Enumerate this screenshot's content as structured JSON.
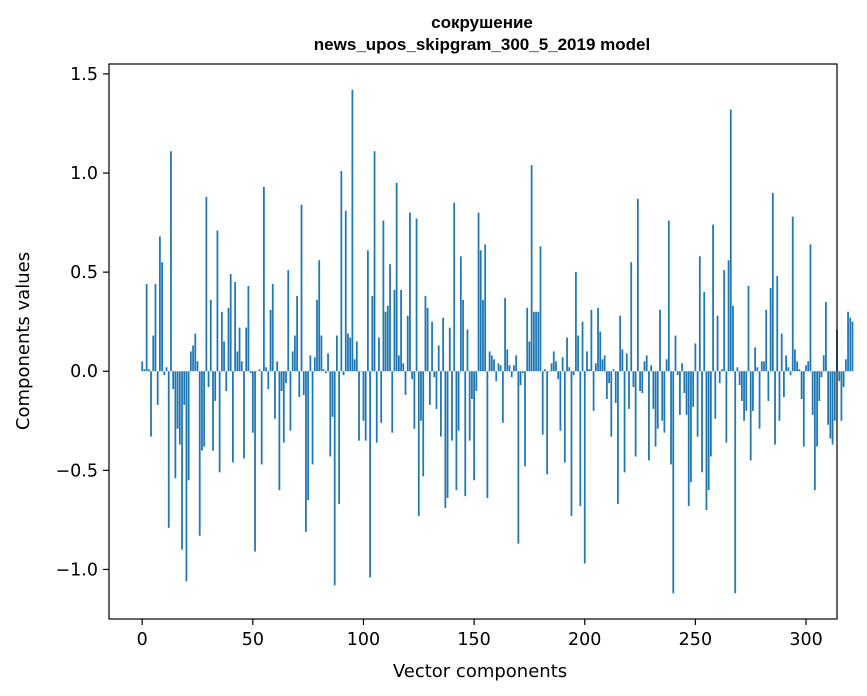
{
  "chart_data": {
    "type": "bar",
    "title": "сокрушение",
    "subtitle": "news_upos_skipgram_300_5_2019 model",
    "xlabel": "Vector components",
    "ylabel": "Components values",
    "xlim": [
      -15,
      314
    ],
    "ylim": [
      -1.25,
      1.55
    ],
    "xticks": [
      0,
      50,
      100,
      150,
      200,
      250,
      300
    ],
    "yticks": [
      -1.0,
      -0.5,
      0.0,
      0.5,
      1.0,
      1.5
    ],
    "xtick_labels": [
      "0",
      "50",
      "100",
      "150",
      "200",
      "250",
      "300"
    ],
    "ytick_labels": [
      "−1.0",
      "−0.5",
      "0.0",
      "0.5",
      "1.0",
      "1.5"
    ],
    "bar_color": "#1f77b4",
    "grid": false,
    "legend": "none",
    "values": [
      0.05,
      0.01,
      0.44,
      0.01,
      -0.33,
      0.18,
      0.44,
      -0.17,
      0.68,
      0.55,
      -0.02,
      0.02,
      -0.79,
      1.11,
      -0.09,
      -0.54,
      -0.29,
      -0.37,
      -0.9,
      -0.17,
      -1.06,
      -0.55,
      0.1,
      0.13,
      0.19,
      0.05,
      -0.83,
      -0.4,
      -0.38,
      0.88,
      -0.08,
      0.36,
      -0.4,
      -0.15,
      0.71,
      -0.51,
      0.3,
      0.15,
      -0.1,
      0.32,
      0.49,
      -0.46,
      0.45,
      0.1,
      0.22,
      0.05,
      -0.44,
      0.22,
      0.43,
      -0.01,
      -0.31,
      -0.91,
      0.0,
      0.01,
      -0.47,
      0.93,
      0.02,
      -0.09,
      0.31,
      0.44,
      -0.24,
      0.05,
      -0.6,
      -0.1,
      -0.36,
      -0.06,
      0.51,
      -0.3,
      0.1,
      0.18,
      0.38,
      -0.13,
      0.84,
      -0.12,
      -0.81,
      -0.65,
      0.08,
      -0.47,
      0.07,
      0.36,
      0.56,
      0.18,
      0.01,
      -0.01,
      0.09,
      -0.43,
      -0.23,
      -1.08,
      0.18,
      -0.67,
      1.01,
      -0.02,
      0.81,
      0.19,
      0.17,
      1.42,
      0.06,
      0.15,
      -0.35,
      0.0,
      -0.25,
      -0.35,
      0.61,
      -1.04,
      0.38,
      1.11,
      -0.36,
      0.17,
      -0.26,
      0.76,
      0.3,
      0.33,
      0.54,
      -0.31,
      0.41,
      0.95,
      0.08,
      0.41,
      0.04,
      -0.12,
      0.28,
      0.8,
      -0.04,
      -0.29,
      0.77,
      -0.73,
      -0.25,
      -0.53,
      0.38,
      0.32,
      -0.17,
      0.25,
      -0.03,
      -0.19,
      0.13,
      -0.33,
      0.27,
      -0.69,
      -0.64,
      0.22,
      -0.35,
      0.85,
      -0.6,
      -0.3,
      0.58,
      0.36,
      -0.63,
      0.21,
      -0.35,
      -0.14,
      -0.55,
      -0.1,
      0.8,
      0.61,
      0.36,
      0.64,
      -0.64,
      0.1,
      0.08,
      0.06,
      -0.05,
      0.04,
      0.03,
      -0.26,
      0.37,
      0.11,
      0.03,
      -0.03,
      0.03,
      0.08,
      -0.87,
      -0.07,
      -0.01,
      -0.48,
      0.32,
      0.15,
      1.04,
      0.3,
      0.3,
      0.3,
      0.63,
      -0.32,
      0.01,
      -0.52,
      0.0,
      0.04,
      0.1,
      0.05,
      -0.04,
      -0.3,
      0.07,
      -0.46,
      0.17,
      0.02,
      -0.73,
      -0.02,
      0.5,
      0.18,
      -0.68,
      0.25,
      -0.97,
      0.1,
      0.01,
      0.31,
      -0.2,
      0.04,
      0.32,
      0.2,
      0.06,
      0.08,
      -0.14,
      -0.06,
      -0.33,
      0.01,
      -0.16,
      -0.67,
      0.28,
      0.11,
      -0.51,
      0.09,
      -0.19,
      0.55,
      -0.08,
      -0.43,
      0.87,
      -0.1,
      -0.11,
      0.05,
      0.08,
      -0.45,
      0.03,
      -0.19,
      -0.38,
      -0.29,
      0.31,
      -0.25,
      -0.31,
      0.06,
      0.76,
      -0.47,
      -1.12,
      0.18,
      -0.02,
      -0.22,
      0.04,
      -0.11,
      -0.22,
      -0.68,
      -0.56,
      -0.18,
      0.14,
      -0.33,
      0.58,
      -0.51,
      0.4,
      -0.7,
      -0.6,
      -0.43,
      0.74,
      -0.24,
      0.28,
      -0.06,
      0.01,
      0.51,
      -0.36,
      0.56,
      1.32,
      0.33,
      -1.12,
      0.02,
      -0.07,
      -0.15,
      -0.25,
      -0.2,
      0.43,
      -0.45,
      -0.2,
      0.12,
      0.02,
      -0.29,
      0.05,
      0.05,
      0.31,
      -0.15,
      0.42,
      0.9,
      -0.37,
      0.48,
      -0.25,
      0.19,
      -0.13,
      0.08,
      0.02,
      -0.02,
      0.78,
      0.11,
      0.05,
      0.01,
      -0.14,
      -0.38,
      0.03,
      0.05,
      0.64,
      -0.22,
      -0.6,
      -0.38,
      -0.15,
      -0.03,
      0.08,
      0.35,
      -0.27,
      -0.34,
      -0.37,
      -0.25,
      0.21,
      -0.05,
      -0.25,
      -0.08,
      0.06,
      0.3,
      0.27,
      0.25
    ]
  }
}
